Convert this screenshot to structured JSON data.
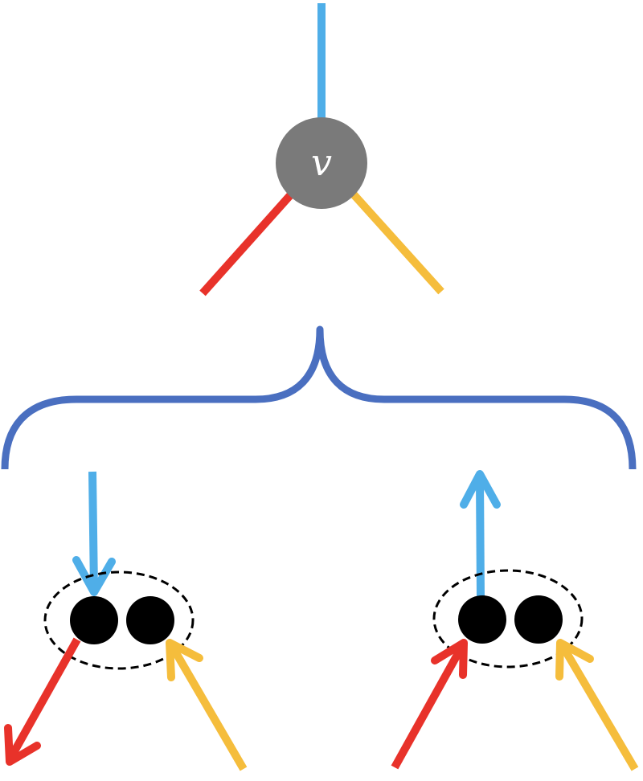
{
  "diagram": {
    "vertex_label": "v"
  },
  "colors": {
    "background": "#ffffff",
    "edge_top": "#4faee8",
    "edge_left": "#e8322a",
    "edge_right": "#f5bd3c",
    "vertex_fill": "#7a7a7a",
    "brace": "#4a6fc0",
    "dot_fill": "#000000",
    "group_outline": "#000000"
  },
  "icons": {
    "vertex": "vertex-circle",
    "brace": "curly-brace",
    "group": "dashed-ellipse",
    "dot": "filled-circle",
    "arrow": "arrow"
  }
}
